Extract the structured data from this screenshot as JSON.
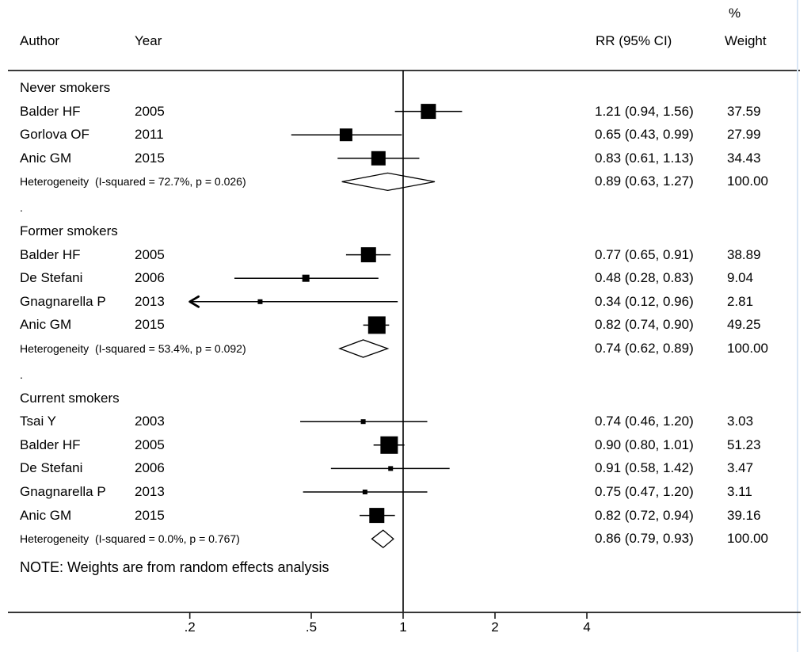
{
  "header": {
    "author": "Author",
    "year": "Year",
    "rr_ci": "RR (95% CI)",
    "percent": "%",
    "weight": "Weight"
  },
  "note": "NOTE: Weights are from random effects analysis",
  "blank_row_marker": ".",
  "chart_data": {
    "type": "forest",
    "x_scale": "log",
    "x_ticks": [
      0.2,
      0.5,
      1,
      2,
      4
    ],
    "x_tick_labels": [
      ".2",
      ".5",
      "1",
      "2",
      "4"
    ],
    "reference_value": 1,
    "clip_min": 0.2,
    "groups": [
      {
        "label": "Never smokers",
        "heterogeneity": "Heterogeneity  (I-squared = 72.7%, p = 0.026)",
        "studies": [
          {
            "author": "Balder HF",
            "year": "2005",
            "rr": 1.21,
            "ci_low": 0.94,
            "ci_high": 1.56,
            "weight": 37.59,
            "rr_text": "1.21 (0.94, 1.56)",
            "weight_text": "37.59"
          },
          {
            "author": "Gorlova OF",
            "year": "2011",
            "rr": 0.65,
            "ci_low": 0.43,
            "ci_high": 0.99,
            "weight": 27.99,
            "rr_text": "0.65 (0.43, 0.99)",
            "weight_text": "27.99"
          },
          {
            "author": "Anic GM",
            "year": "2015",
            "rr": 0.83,
            "ci_low": 0.61,
            "ci_high": 1.13,
            "weight": 34.43,
            "rr_text": "0.83 (0.61, 1.13)",
            "weight_text": "34.43"
          }
        ],
        "pooled": {
          "rr": 0.89,
          "ci_low": 0.63,
          "ci_high": 1.27,
          "rr_text": "0.89 (0.63, 1.27)",
          "weight_text": "100.00"
        }
      },
      {
        "label": "Former smokers",
        "heterogeneity": "Heterogeneity  (I-squared = 53.4%, p = 0.092)",
        "studies": [
          {
            "author": "Balder HF",
            "year": "2005",
            "rr": 0.77,
            "ci_low": 0.65,
            "ci_high": 0.91,
            "weight": 38.89,
            "rr_text": "0.77 (0.65, 0.91)",
            "weight_text": "38.89"
          },
          {
            "author": "De Stefani",
            "year": "2006",
            "rr": 0.48,
            "ci_low": 0.28,
            "ci_high": 0.83,
            "weight": 9.04,
            "rr_text": "0.48 (0.28, 0.83)",
            "weight_text": "9.04"
          },
          {
            "author": "Gnagnarella P",
            "year": "2013",
            "rr": 0.34,
            "ci_low": 0.12,
            "ci_high": 0.96,
            "weight": 2.81,
            "rr_text": "0.34 (0.12, 0.96)",
            "weight_text": "2.81"
          },
          {
            "author": "Anic GM",
            "year": "2015",
            "rr": 0.82,
            "ci_low": 0.74,
            "ci_high": 0.9,
            "weight": 49.25,
            "rr_text": "0.82 (0.74, 0.90)",
            "weight_text": "49.25"
          }
        ],
        "pooled": {
          "rr": 0.74,
          "ci_low": 0.62,
          "ci_high": 0.89,
          "rr_text": "0.74 (0.62, 0.89)",
          "weight_text": "100.00"
        }
      },
      {
        "label": "Current smokers",
        "heterogeneity": "Heterogeneity  (I-squared = 0.0%, p = 0.767)",
        "studies": [
          {
            "author": "Tsai Y",
            "year": "2003",
            "rr": 0.74,
            "ci_low": 0.46,
            "ci_high": 1.2,
            "weight": 3.03,
            "rr_text": "0.74 (0.46, 1.20)",
            "weight_text": "3.03"
          },
          {
            "author": "Balder HF",
            "year": "2005",
            "rr": 0.9,
            "ci_low": 0.8,
            "ci_high": 1.01,
            "weight": 51.23,
            "rr_text": "0.90 (0.80, 1.01)",
            "weight_text": "51.23"
          },
          {
            "author": "De Stefani",
            "year": "2006",
            "rr": 0.91,
            "ci_low": 0.58,
            "ci_high": 1.42,
            "weight": 3.47,
            "rr_text": "0.91 (0.58, 1.42)",
            "weight_text": "3.47"
          },
          {
            "author": "Gnagnarella P",
            "year": "2013",
            "rr": 0.75,
            "ci_low": 0.47,
            "ci_high": 1.2,
            "weight": 3.11,
            "rr_text": "0.75 (0.47, 1.20)",
            "weight_text": "3.11"
          },
          {
            "author": "Anic GM",
            "year": "2015",
            "rr": 0.82,
            "ci_low": 0.72,
            "ci_high": 0.94,
            "weight": 39.16,
            "rr_text": "0.82 (0.72, 0.94)",
            "weight_text": "39.16"
          }
        ],
        "pooled": {
          "rr": 0.86,
          "ci_low": 0.79,
          "ci_high": 0.93,
          "rr_text": "0.86 (0.79, 0.93)",
          "weight_text": "100.00"
        }
      }
    ]
  }
}
